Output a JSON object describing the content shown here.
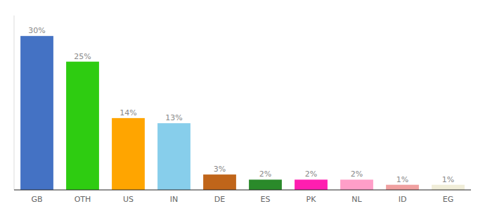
{
  "chart_data": {
    "type": "bar",
    "categories": [
      "GB",
      "OTH",
      "US",
      "IN",
      "DE",
      "ES",
      "PK",
      "NL",
      "ID",
      "EG"
    ],
    "values": [
      30,
      25,
      14,
      13,
      3,
      2,
      2,
      2,
      1,
      1
    ],
    "value_labels": [
      "30%",
      "25%",
      "14%",
      "13%",
      "3%",
      "2%",
      "2%",
      "2%",
      "1%",
      "1%"
    ],
    "colors": [
      "#4472c4",
      "#2ecc11",
      "#ffa500",
      "#87ceeb",
      "#c0651a",
      "#2a8a2a",
      "#ff1eb0",
      "#ff9ec8",
      "#f0a0a0",
      "#f0edd8"
    ],
    "ylim": [
      0,
      34
    ],
    "grid": false,
    "data_labels": true,
    "tick_labels": "x"
  }
}
